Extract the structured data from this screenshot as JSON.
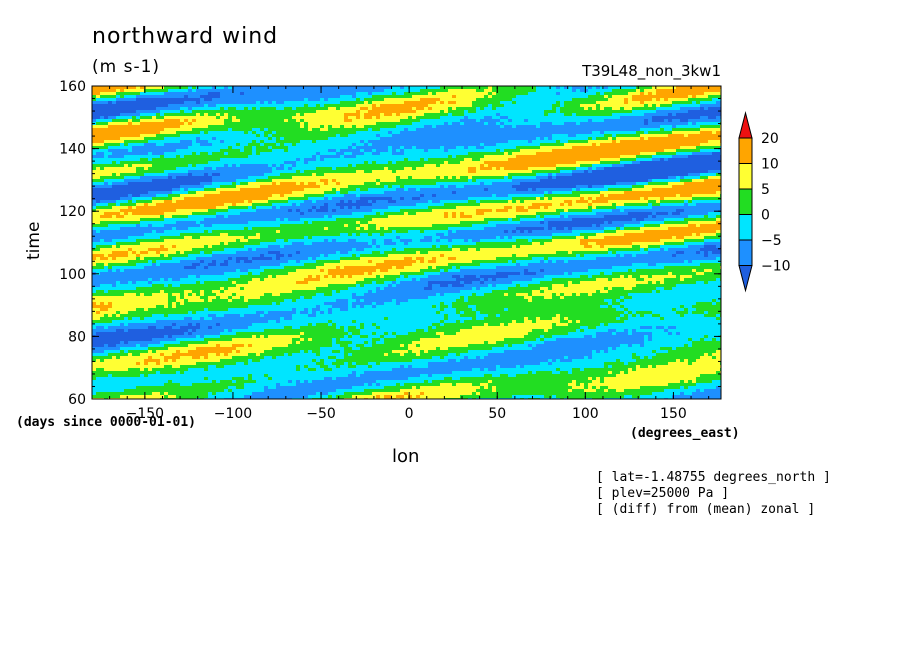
{
  "chart_data": {
    "type": "heatmap",
    "title": "northward wind",
    "units": "(m s-1)",
    "run_label": "T39L48_non_3kw1",
    "xlabel": "lon",
    "ylabel": "time",
    "x_units": "(degrees_east)",
    "y_units": "(days since 0000-01-01)",
    "xlim": [
      -180,
      177
    ],
    "ylim": [
      60,
      160
    ],
    "x_ticks": [
      -150,
      -100,
      -50,
      0,
      50,
      100,
      150
    ],
    "x_tick_labels": [
      "−150",
      "−100",
      "−50",
      "0",
      "50",
      "100",
      "150"
    ],
    "y_ticks": [
      60,
      80,
      100,
      120,
      140,
      160
    ],
    "y_tick_labels": [
      "60",
      "80",
      "100",
      "120",
      "140",
      "160"
    ],
    "contour_levels": [
      -10,
      -5,
      0,
      5,
      10,
      20
    ],
    "colorbar_labels": [
      "20",
      "10",
      "5",
      "0",
      "−5",
      "−10"
    ],
    "colorbar_colors": [
      "#1f5fe0",
      "#1e90ff",
      "#00e5ff",
      "#22dd22",
      "#ffff33",
      "#ffa500",
      "#ee1111"
    ],
    "grid": false,
    "notes": [
      "[ lat=-1.48755 degrees_north ]",
      "[ plev=25000 Pa ]",
      "[ (diff) from (mean) zonal ]"
    ]
  }
}
